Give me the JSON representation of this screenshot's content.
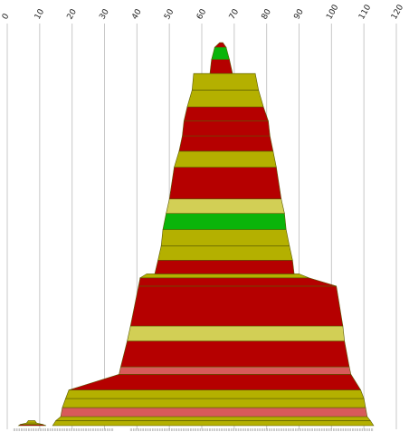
{
  "chart_data": {
    "type": "area",
    "title": "",
    "xlabel": "",
    "ylabel": "",
    "xlim": [
      0,
      120
    ],
    "x_ticks": [
      "0",
      "10",
      "20",
      "30",
      "40",
      "50",
      "60",
      "70",
      "80",
      "90",
      "100",
      "110",
      "120"
    ],
    "grid": true,
    "colors": {
      "red": "#b50000",
      "olive": "#b4b000",
      "green": "#0ab40a",
      "light_yellow": "#d2cf55",
      "pink": "#d85a5a"
    },
    "shapes": [
      {
        "name": "small-left-mound",
        "rows": [
          {
            "y": 0.0,
            "left": 3.5,
            "right": 12.0,
            "color": "red"
          },
          {
            "y": 0.003,
            "left": 4.0,
            "right": 11.0,
            "color": "olive"
          },
          {
            "y": 0.007,
            "left": 6.0,
            "right": 9.0,
            "color": "olive"
          }
        ]
      },
      {
        "name": "lower-trapezoid",
        "rows": [
          {
            "y": 0.0,
            "left": 14.0,
            "right": 113.0,
            "color": "olive"
          },
          {
            "y": 0.013,
            "left": 15.0,
            "right": 112.0,
            "color": "olive"
          },
          {
            "y": 0.023,
            "left": 16.5,
            "right": 111.0,
            "color": "pink"
          },
          {
            "y": 0.046,
            "left": 17.0,
            "right": 110.5,
            "color": "olive"
          },
          {
            "y": 0.069,
            "left": 18.0,
            "right": 110.0,
            "color": "olive"
          },
          {
            "y": 0.091,
            "left": 19.0,
            "right": 109.0,
            "color": "red"
          },
          {
            "y": 0.131,
            "left": 34.5,
            "right": 106.0,
            "color": "pink"
          },
          {
            "y": 0.15,
            "left": 35.0,
            "right": 105.5,
            "color": "red"
          },
          {
            "y": 0.216,
            "left": 37.0,
            "right": 104.0,
            "color": "light_yellow"
          },
          {
            "y": 0.254,
            "left": 38.0,
            "right": 103.5,
            "color": "red"
          },
          {
            "y": 0.356,
            "left": 40.5,
            "right": 101.5,
            "color": "red"
          },
          {
            "y": 0.377,
            "left": 41.0,
            "right": 93.0,
            "color": "olive"
          }
        ],
        "top": {
          "y": 0.387,
          "left": 43.0,
          "right": 90.0
        }
      },
      {
        "name": "upper-tower",
        "rows": [
          {
            "y": 0.387,
            "left": 45.5,
            "right": 88.5,
            "color": "red"
          },
          {
            "y": 0.422,
            "left": 46.5,
            "right": 88.0,
            "color": "olive"
          },
          {
            "y": 0.459,
            "left": 47.5,
            "right": 87.0,
            "color": "olive"
          },
          {
            "y": 0.5,
            "left": 48.0,
            "right": 86.0,
            "color": "green"
          },
          {
            "y": 0.541,
            "left": 49.0,
            "right": 85.5,
            "color": "light_yellow"
          },
          {
            "y": 0.578,
            "left": 50.0,
            "right": 84.5,
            "color": "red"
          },
          {
            "y": 0.659,
            "left": 51.5,
            "right": 83.0,
            "color": "olive"
          },
          {
            "y": 0.7,
            "left": 53.0,
            "right": 82.0,
            "color": "red"
          },
          {
            "y": 0.739,
            "left": 54.0,
            "right": 81.0,
            "color": "red"
          },
          {
            "y": 0.777,
            "left": 54.5,
            "right": 80.5,
            "color": "red"
          },
          {
            "y": 0.813,
            "left": 55.5,
            "right": 79.0,
            "color": "olive"
          },
          {
            "y": 0.856,
            "left": 57.0,
            "right": 77.5,
            "color": "olive"
          }
        ],
        "top": {
          "y": 0.898,
          "left": 57.5,
          "right": 76.5
        }
      },
      {
        "name": "spire",
        "rows": [
          {
            "y": 0.898,
            "left": 62.5,
            "right": 69.5,
            "color": "red"
          },
          {
            "y": 0.934,
            "left": 63.0,
            "right": 68.5,
            "color": "green"
          },
          {
            "y": 0.965,
            "left": 64.0,
            "right": 67.5,
            "color": "red"
          }
        ],
        "top": {
          "y": 0.977,
          "left": 65.5,
          "right": 66.5
        }
      }
    ]
  }
}
